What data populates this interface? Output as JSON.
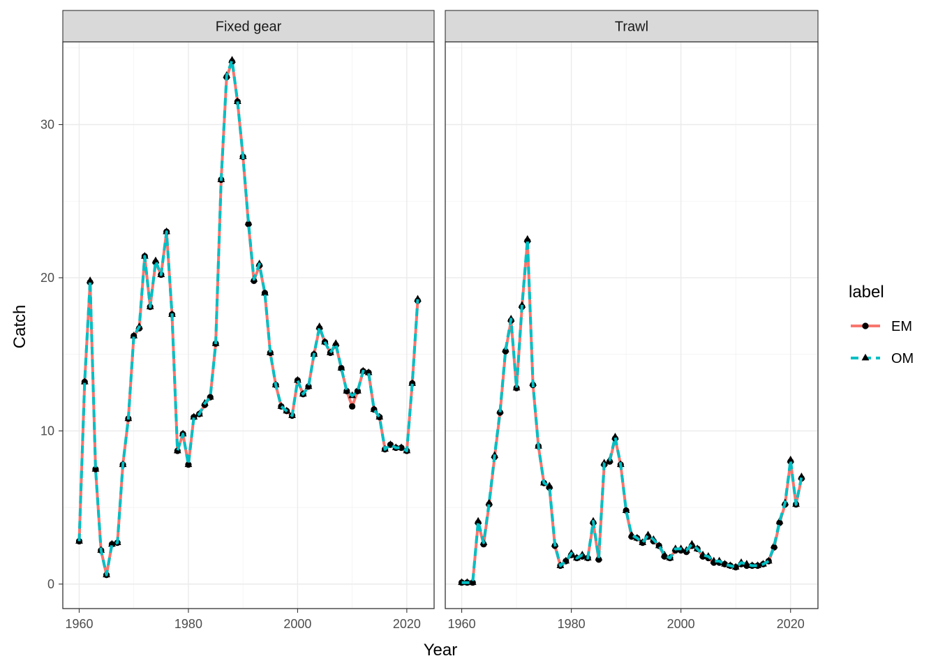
{
  "chart_data": {
    "type": "line",
    "xlabel": "Year",
    "ylabel": "Catch",
    "xlim": [
      1957,
      2025
    ],
    "ylim": [
      -1.6,
      35.4
    ],
    "xticks": [
      1960,
      1980,
      2000,
      2020
    ],
    "yticks": [
      0,
      10,
      20,
      30
    ],
    "grid": true,
    "legend_placement": "right",
    "legend_title": "label",
    "series_styles": [
      {
        "name": "EM",
        "color": "#F8766D",
        "line": "solid",
        "marker": "circle"
      },
      {
        "name": "OM",
        "color": "#00BFC4",
        "line": "dashed",
        "marker": "triangle"
      }
    ],
    "marker_color": "#000000",
    "facets": [
      {
        "title": "Fixed gear",
        "x": [
          1960,
          1961,
          1962,
          1963,
          1964,
          1965,
          1966,
          1967,
          1968,
          1969,
          1970,
          1971,
          1972,
          1973,
          1974,
          1975,
          1976,
          1977,
          1978,
          1979,
          1980,
          1981,
          1982,
          1983,
          1984,
          1985,
          1986,
          1987,
          1988,
          1989,
          1990,
          1991,
          1992,
          1993,
          1994,
          1995,
          1996,
          1997,
          1998,
          1999,
          2000,
          2001,
          2002,
          2003,
          2004,
          2005,
          2006,
          2007,
          2008,
          2009,
          2010,
          2011,
          2012,
          2013,
          2014,
          2015,
          2016,
          2017,
          2018,
          2019,
          2020,
          2021,
          2022
        ],
        "series": [
          {
            "name": "EM",
            "values": [
              2.8,
              13.2,
              19.7,
              7.5,
              2.2,
              0.6,
              2.6,
              2.7,
              7.8,
              10.8,
              16.2,
              16.7,
              21.4,
              18.1,
              21.0,
              20.2,
              23.0,
              17.6,
              8.7,
              9.8,
              7.8,
              10.9,
              11.1,
              11.7,
              12.2,
              15.7,
              26.4,
              33.1,
              34.1,
              31.5,
              27.9,
              23.5,
              19.8,
              20.8,
              19.0,
              15.1,
              13.0,
              11.6,
              11.3,
              11.0,
              13.3,
              12.4,
              12.9,
              15.0,
              16.7,
              15.8,
              15.1,
              15.6,
              14.1,
              12.6,
              11.6,
              12.6,
              13.9,
              13.8,
              11.4,
              10.9,
              8.8,
              9.1,
              8.9,
              8.9,
              8.7,
              13.1,
              18.5
            ]
          },
          {
            "name": "OM",
            "values": [
              2.8,
              13.2,
              19.8,
              7.5,
              2.2,
              0.6,
              2.6,
              2.7,
              7.8,
              10.8,
              16.2,
              16.8,
              21.4,
              18.1,
              21.1,
              20.2,
              23.0,
              17.6,
              8.7,
              9.8,
              7.8,
              10.9,
              11.1,
              11.8,
              12.2,
              15.7,
              26.4,
              33.2,
              34.2,
              31.5,
              27.9,
              23.6,
              19.9,
              20.9,
              19.0,
              15.1,
              13.0,
              11.6,
              11.3,
              11.0,
              13.3,
              12.4,
              12.9,
              15.0,
              16.8,
              15.8,
              15.1,
              15.7,
              14.1,
              12.6,
              12.3,
              12.6,
              13.9,
              13.8,
              11.4,
              10.9,
              8.8,
              9.1,
              8.9,
              8.9,
              8.7,
              13.1,
              18.6
            ]
          }
        ]
      },
      {
        "title": "Trawl",
        "x": [
          1960,
          1961,
          1962,
          1963,
          1964,
          1965,
          1966,
          1967,
          1968,
          1969,
          1970,
          1971,
          1972,
          1973,
          1974,
          1975,
          1976,
          1977,
          1978,
          1979,
          1980,
          1981,
          1982,
          1983,
          1984,
          1985,
          1986,
          1987,
          1988,
          1989,
          1990,
          1991,
          1992,
          1993,
          1994,
          1995,
          1996,
          1997,
          1998,
          1999,
          2000,
          2001,
          2002,
          2003,
          2004,
          2005,
          2006,
          2007,
          2008,
          2009,
          2010,
          2011,
          2012,
          2013,
          2014,
          2015,
          2016,
          2017,
          2018,
          2019,
          2020,
          2021,
          2022
        ],
        "series": [
          {
            "name": "EM",
            "values": [
              0.1,
              0.1,
              0.1,
              4.0,
              2.6,
              5.2,
              8.3,
              11.2,
              15.2,
              17.2,
              12.8,
              18.1,
              22.4,
              13.0,
              9.0,
              6.6,
              6.3,
              2.5,
              1.2,
              1.5,
              1.9,
              1.7,
              1.8,
              1.7,
              4.0,
              1.6,
              7.8,
              8.0,
              9.5,
              7.8,
              4.8,
              3.1,
              3.0,
              2.7,
              3.1,
              2.8,
              2.5,
              1.8,
              1.7,
              2.2,
              2.2,
              2.1,
              2.5,
              2.3,
              1.8,
              1.7,
              1.4,
              1.4,
              1.3,
              1.2,
              1.1,
              1.3,
              1.2,
              1.2,
              1.2,
              1.3,
              1.5,
              2.4,
              4.0,
              5.2,
              8.0,
              5.2,
              6.9
            ]
          },
          {
            "name": "OM",
            "values": [
              0.1,
              0.1,
              0.1,
              4.1,
              2.7,
              5.3,
              8.4,
              11.3,
              15.3,
              17.3,
              12.8,
              18.2,
              22.5,
              13.1,
              9.0,
              6.6,
              6.4,
              2.6,
              1.2,
              1.5,
              2.0,
              1.7,
              1.9,
              1.7,
              4.1,
              1.7,
              7.9,
              8.1,
              9.6,
              7.8,
              4.8,
              3.2,
              3.0,
              2.7,
              3.2,
              2.9,
              2.5,
              1.9,
              1.7,
              2.3,
              2.3,
              2.2,
              2.6,
              2.3,
              1.9,
              1.8,
              1.5,
              1.5,
              1.3,
              1.2,
              1.1,
              1.4,
              1.3,
              1.2,
              1.2,
              1.3,
              1.5,
              2.5,
              4.1,
              5.3,
              8.1,
              5.2,
              7.0
            ]
          }
        ]
      }
    ]
  }
}
